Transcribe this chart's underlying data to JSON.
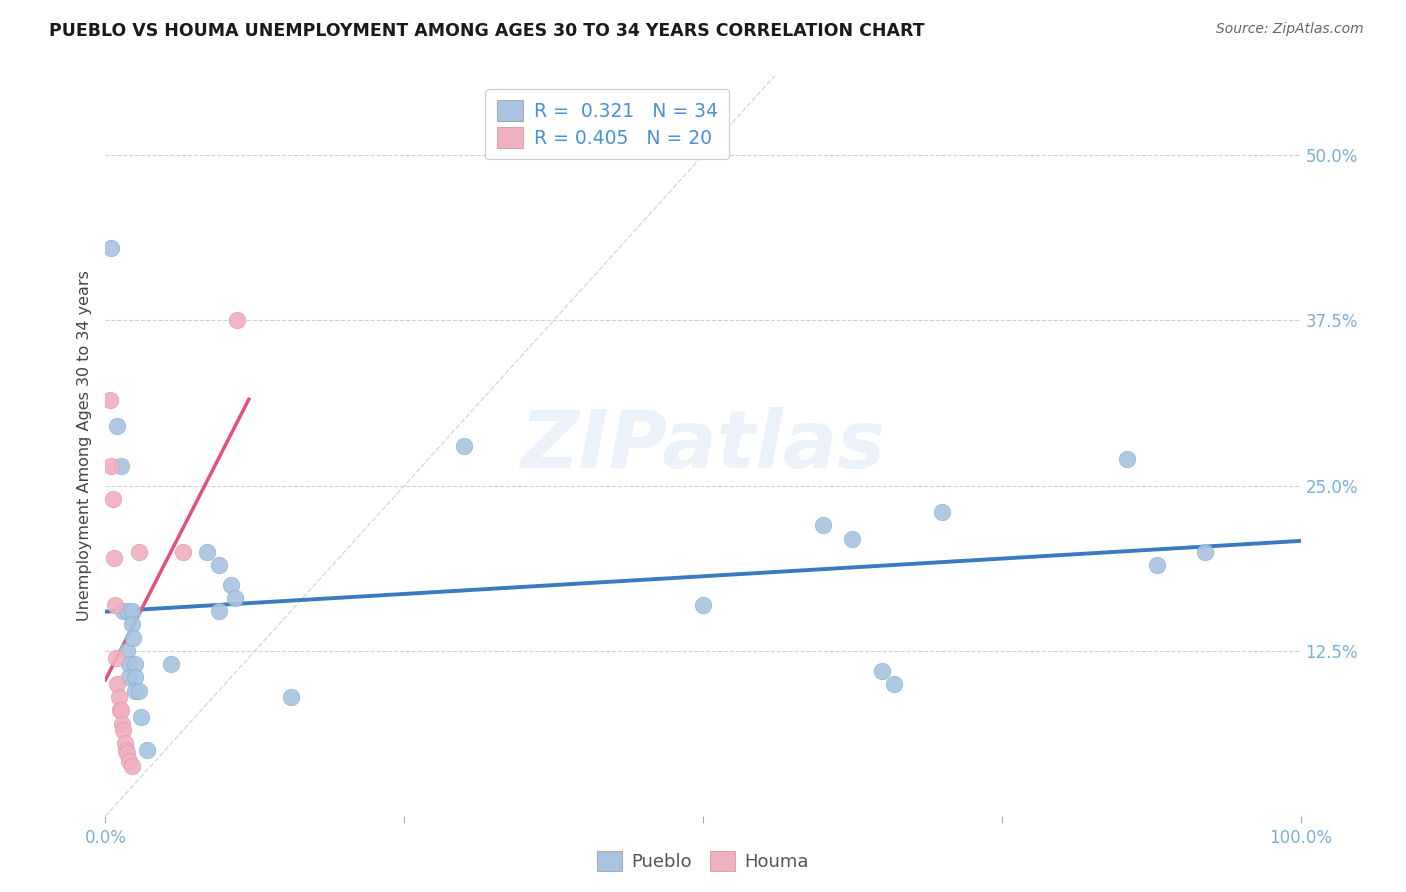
{
  "title": "PUEBLO VS HOUMA UNEMPLOYMENT AMONG AGES 30 TO 34 YEARS CORRELATION CHART",
  "source": "Source: ZipAtlas.com",
  "ylabel": "Unemployment Among Ages 30 to 34 years",
  "xlim": [
    0.0,
    1.0
  ],
  "ylim": [
    0.0,
    0.56
  ],
  "ytick_labels": [
    "12.5%",
    "25.0%",
    "37.5%",
    "50.0%"
  ],
  "ytick_values": [
    0.125,
    0.25,
    0.375,
    0.5
  ],
  "pueblo_color": "#a8c4e0",
  "houma_color": "#f0b0c0",
  "pueblo_line_color": "#3a7abf",
  "houma_line_color": "#e05080",
  "r_pueblo": "0.321",
  "n_pueblo": "34",
  "r_houma": "0.405",
  "n_houma": "20",
  "legend_text_color": "#4a90d4",
  "watermark_text": "ZIPatlas",
  "pueblo_points": [
    [
      0.005,
      0.43
    ],
    [
      0.01,
      0.295
    ],
    [
      0.013,
      0.265
    ],
    [
      0.015,
      0.155
    ],
    [
      0.018,
      0.155
    ],
    [
      0.018,
      0.125
    ],
    [
      0.02,
      0.115
    ],
    [
      0.02,
      0.105
    ],
    [
      0.022,
      0.155
    ],
    [
      0.022,
      0.145
    ],
    [
      0.023,
      0.135
    ],
    [
      0.025,
      0.115
    ],
    [
      0.025,
      0.105
    ],
    [
      0.025,
      0.095
    ],
    [
      0.028,
      0.095
    ],
    [
      0.03,
      0.075
    ],
    [
      0.035,
      0.05
    ],
    [
      0.055,
      0.115
    ],
    [
      0.085,
      0.2
    ],
    [
      0.095,
      0.19
    ],
    [
      0.095,
      0.155
    ],
    [
      0.105,
      0.175
    ],
    [
      0.108,
      0.165
    ],
    [
      0.155,
      0.09
    ],
    [
      0.3,
      0.28
    ],
    [
      0.5,
      0.16
    ],
    [
      0.6,
      0.22
    ],
    [
      0.625,
      0.21
    ],
    [
      0.65,
      0.11
    ],
    [
      0.66,
      0.1
    ],
    [
      0.7,
      0.23
    ],
    [
      0.855,
      0.27
    ],
    [
      0.88,
      0.19
    ],
    [
      0.92,
      0.2
    ]
  ],
  "houma_points": [
    [
      0.004,
      0.315
    ],
    [
      0.005,
      0.265
    ],
    [
      0.006,
      0.24
    ],
    [
      0.007,
      0.195
    ],
    [
      0.008,
      0.16
    ],
    [
      0.009,
      0.12
    ],
    [
      0.01,
      0.1
    ],
    [
      0.011,
      0.09
    ],
    [
      0.012,
      0.08
    ],
    [
      0.013,
      0.08
    ],
    [
      0.014,
      0.07
    ],
    [
      0.015,
      0.065
    ],
    [
      0.016,
      0.055
    ],
    [
      0.017,
      0.05
    ],
    [
      0.018,
      0.048
    ],
    [
      0.02,
      0.042
    ],
    [
      0.022,
      0.038
    ],
    [
      0.028,
      0.2
    ],
    [
      0.065,
      0.2
    ],
    [
      0.11,
      0.375
    ]
  ]
}
